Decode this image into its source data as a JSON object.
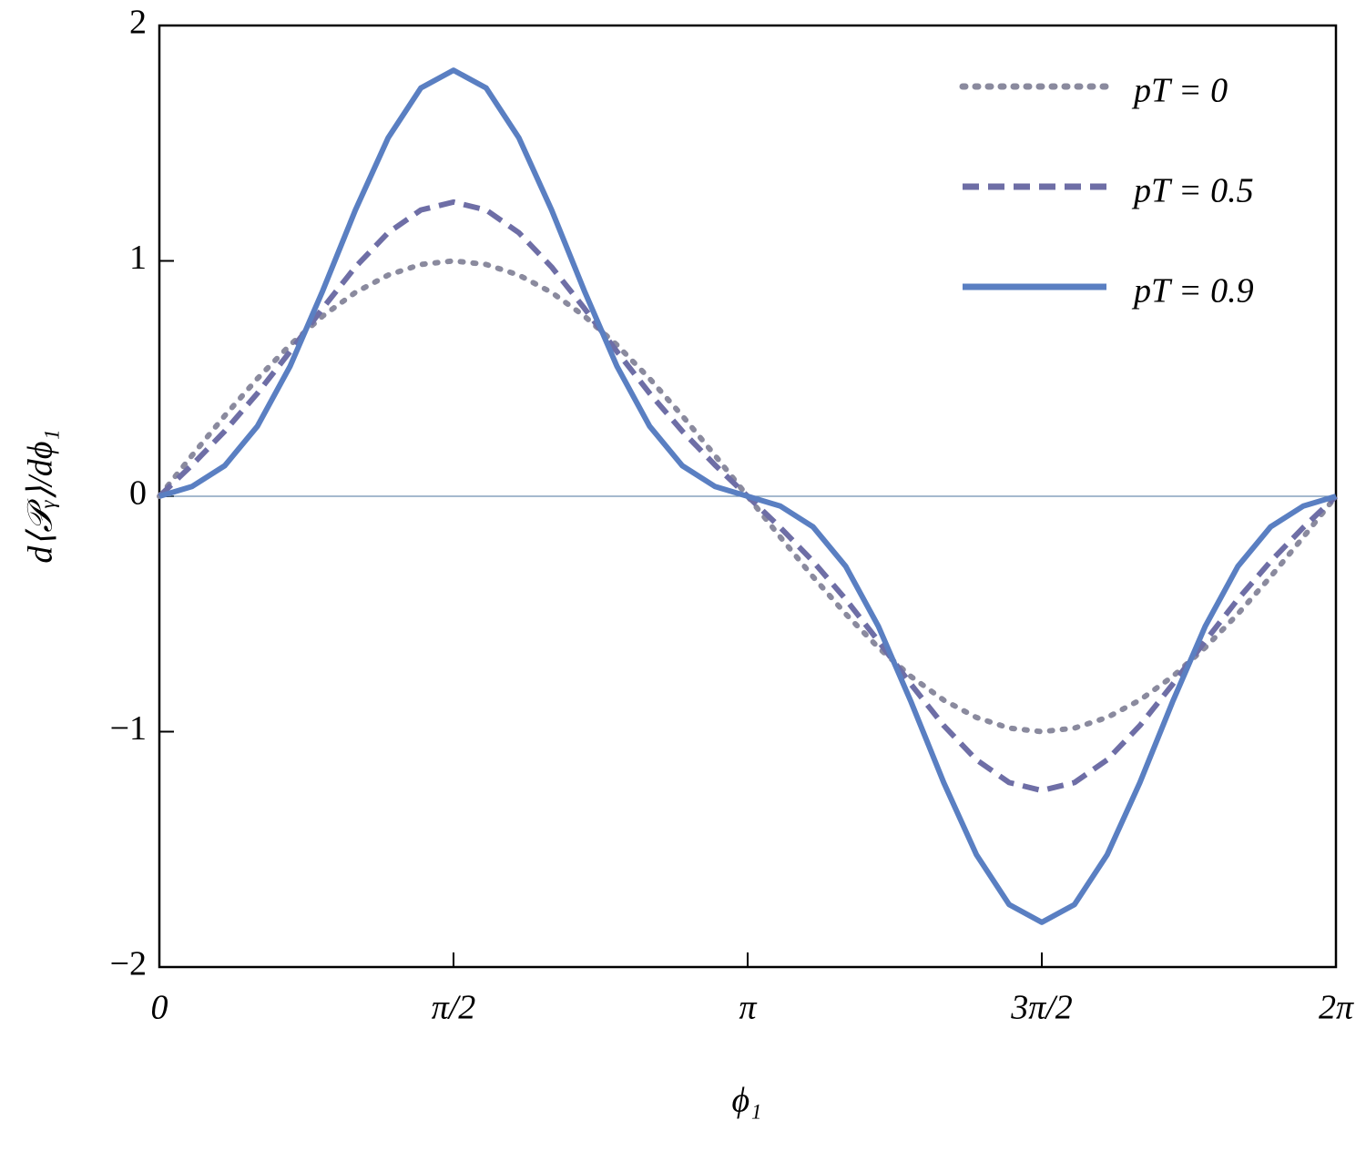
{
  "chart_data": {
    "type": "line",
    "x_label": "ϕ₁",
    "y_label": "d⟨𝒫ᵧ⟩/dϕ₁",
    "x": [
      0,
      0.1745,
      0.3491,
      0.5236,
      0.6981,
      0.8727,
      1.0472,
      1.2217,
      1.3963,
      1.5708,
      1.7453,
      1.9199,
      2.0944,
      2.2689,
      2.4435,
      2.618,
      2.7925,
      2.9671,
      3.1416,
      3.3161,
      3.4907,
      3.6652,
      3.8397,
      4.0143,
      4.1888,
      4.3633,
      4.5379,
      4.7124,
      4.8869,
      5.0615,
      5.236,
      5.4105,
      5.5851,
      5.7596,
      5.9341,
      6.1087,
      6.2832
    ],
    "series": [
      {
        "name": "pT = 0",
        "color": "#8a8a9e",
        "style": "dotted",
        "values": [
          0,
          0.1736,
          0.342,
          0.5,
          0.6428,
          0.766,
          0.866,
          0.9397,
          0.9848,
          1,
          0.9848,
          0.9397,
          0.866,
          0.766,
          0.6428,
          0.5,
          0.342,
          0.1736,
          0,
          -0.1736,
          -0.342,
          -0.5,
          -0.6428,
          -0.766,
          -0.866,
          -0.9397,
          -0.9848,
          -1,
          -0.9848,
          -0.9397,
          -0.866,
          -0.766,
          -0.6428,
          -0.5,
          -0.342,
          -0.1736,
          0
        ]
      },
      {
        "name": "pT = 0.5",
        "color": "#6e6ea6",
        "style": "dashed",
        "values": [
          0,
          0.1328,
          0.2765,
          0.4375,
          0.6149,
          0.7992,
          0.9743,
          1.1197,
          1.2161,
          1.25,
          1.2161,
          1.1197,
          0.9743,
          0.7992,
          0.6149,
          0.4375,
          0.2765,
          0.1328,
          0,
          -0.1328,
          -0.2765,
          -0.4375,
          -0.6149,
          -0.7992,
          -0.9743,
          -1.1197,
          -1.2161,
          -1.25,
          -1.2161,
          -1.1197,
          -0.9743,
          -0.7992,
          -0.6149,
          -0.4375,
          -0.2765,
          -0.1328,
          0
        ]
      },
      {
        "name": "pT = 0.9",
        "color": "#5a7fc2",
        "style": "solid",
        "values": [
          0,
          0.0415,
          0.1298,
          0.2975,
          0.5524,
          0.8737,
          1.2167,
          1.5228,
          1.7344,
          1.81,
          1.7344,
          1.5228,
          1.2167,
          0.8737,
          0.5524,
          0.2975,
          0.1298,
          0.0415,
          0,
          -0.0415,
          -0.1298,
          -0.2975,
          -0.5524,
          -0.8737,
          -1.2167,
          -1.5228,
          -1.7344,
          -1.81,
          -1.7344,
          -1.5228,
          -1.2167,
          -0.8737,
          -0.5524,
          -0.2975,
          -0.1298,
          -0.0415,
          0
        ]
      }
    ],
    "xlim": [
      0,
      6.2832
    ],
    "xticks": [
      0,
      {
        "value": 1.5708,
        "label": "π/2"
      },
      {
        "value": 3.1416,
        "label": "π"
      },
      {
        "value": 4.7124,
        "label": "3π/2"
      },
      {
        "value": 6.2832,
        "label": "2π"
      }
    ],
    "ylim": [
      -2,
      2
    ],
    "yticks": [
      {
        "value": -2,
        "label": "−2"
      },
      {
        "value": -1,
        "label": "−1"
      },
      0,
      1,
      2
    ],
    "legend": "top-right"
  }
}
